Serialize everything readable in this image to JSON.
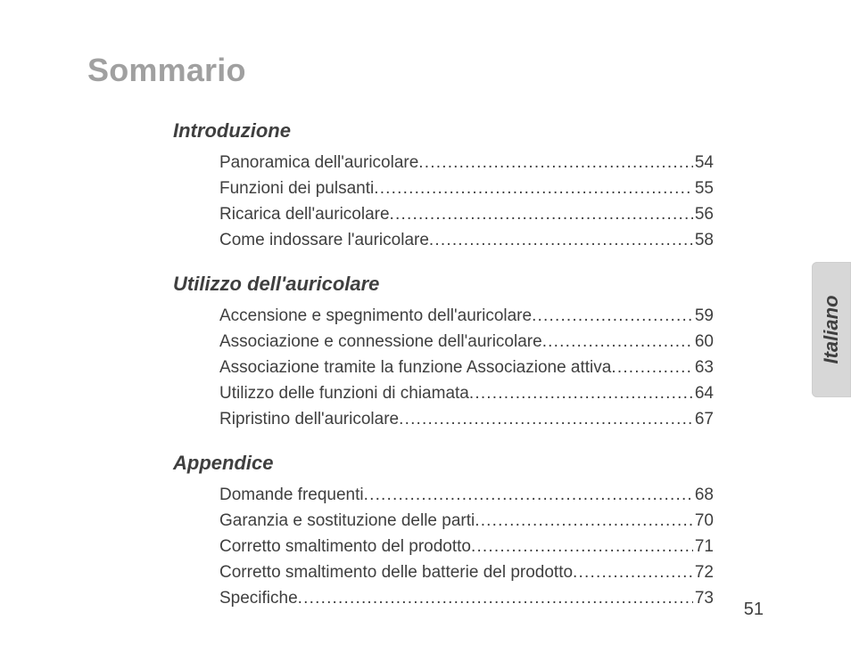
{
  "title": "Sommario",
  "side_tab": "Italiano",
  "page_number": "51",
  "colors": {
    "title_color": "#a0a0a0",
    "text_color": "#3f3f3f",
    "tab_bg": "#d7d7d7",
    "page_bg": "#ffffff"
  },
  "fonts": {
    "title_size_pt": 27,
    "heading_size_pt": 16,
    "entry_size_pt": 14,
    "tab_size_pt": 16,
    "pagenum_size_pt": 15
  },
  "sections": [
    {
      "heading": "Introduzione",
      "entries": [
        {
          "label": "Panoramica dell'auricolare",
          "page": "54"
        },
        {
          "label": "Funzioni dei pulsanti",
          "page": "55"
        },
        {
          "label": "Ricarica dell'auricolare",
          "page": "56"
        },
        {
          "label": "Come indossare l'auricolare",
          "page": "58"
        }
      ]
    },
    {
      "heading": "Utilizzo dell'auricolare",
      "entries": [
        {
          "label": "Accensione e spegnimento dell'auricolare",
          "page": "59"
        },
        {
          "label": "Associazione e connessione dell'auricolare",
          "page": "60"
        },
        {
          "label": "Associazione tramite la funzione Associazione attiva",
          "page": "63"
        },
        {
          "label": "Utilizzo delle funzioni di chiamata",
          "page": "64"
        },
        {
          "label": "Ripristino dell'auricolare",
          "page": "67"
        }
      ]
    },
    {
      "heading": "Appendice",
      "entries": [
        {
          "label": "Domande frequenti",
          "page": "68"
        },
        {
          "label": "Garanzia e sostituzione delle parti",
          "page": "70"
        },
        {
          "label": "Corretto smaltimento del prodotto",
          "page": "71"
        },
        {
          "label": "Corretto smaltimento delle batterie del prodotto",
          "page": "72"
        },
        {
          "label": "Specifiche",
          "page": "73"
        }
      ]
    }
  ]
}
